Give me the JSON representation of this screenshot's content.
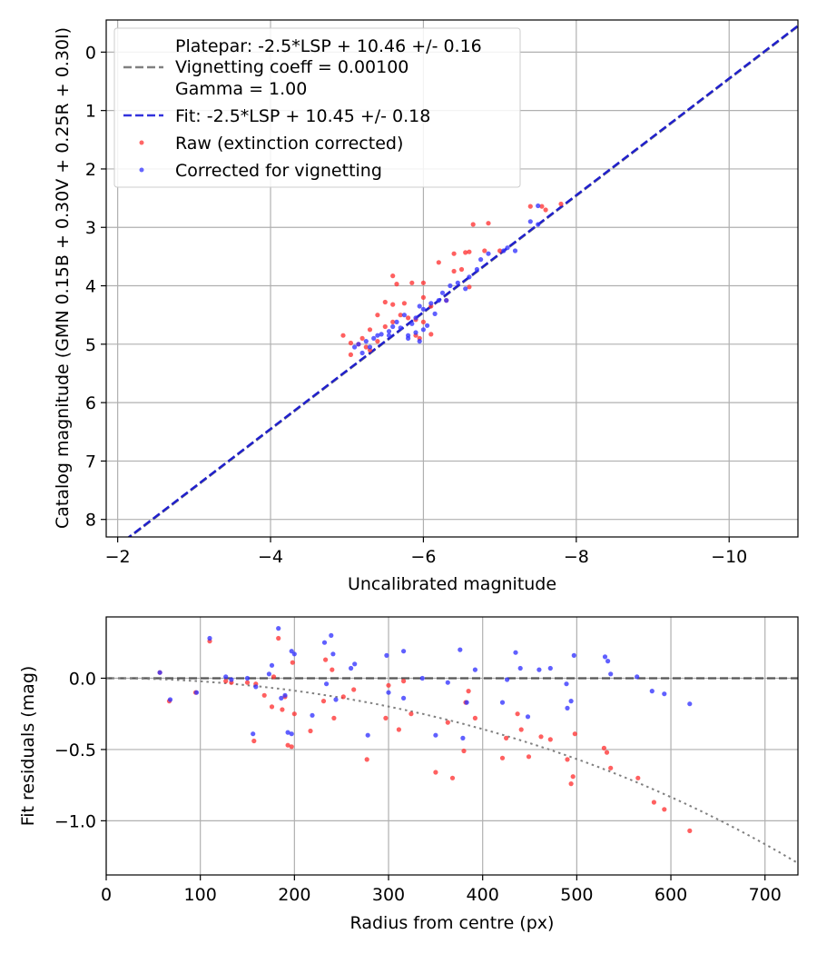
{
  "chart_data": [
    {
      "type": "scatter",
      "xlabel": "Uncalibrated magnitude",
      "ylabel": "Catalog magnitude (GMN 0.15B + 0.30V + 0.25R + 0.30I)",
      "xlim": [
        -1.85,
        -10.9
      ],
      "ylim": [
        8.3,
        -0.55
      ],
      "xticks": [
        -2,
        -4,
        -6,
        -8,
        -10
      ],
      "xtick_labels": [
        "−2",
        "−4",
        "−6",
        "−8",
        "−10"
      ],
      "yticks": [
        0,
        1,
        2,
        3,
        4,
        5,
        6,
        7,
        8
      ],
      "ytick_labels": [
        "0",
        "1",
        "2",
        "3",
        "4",
        "5",
        "6",
        "7",
        "8"
      ],
      "grid": true,
      "legend_position": "upper-left",
      "legend": [
        {
          "label": "Platepar: -2.5*LSP + 10.46 +/- 0.16",
          "style": "none"
        },
        {
          "label": "Vignetting coeff = 0.00100",
          "style": "dashed",
          "color": "#808080"
        },
        {
          "label": "Gamma = 1.00",
          "style": "none"
        },
        {
          "label": "Fit: -2.5*LSP + 10.45 +/- 0.18",
          "style": "dashed",
          "color": "#3333dd"
        },
        {
          "label": "Raw (extinction corrected)",
          "style": "dot",
          "color": "#ff3333"
        },
        {
          "label": "Corrected for vignetting",
          "style": "dot",
          "color": "#3333ff"
        }
      ],
      "lines": [
        {
          "name": "Platepar",
          "color": "#808080",
          "style": "dashed",
          "slope": 1,
          "intercept": 10.46
        },
        {
          "name": "Fit",
          "color": "#2020cc",
          "style": "dashed",
          "slope": 1,
          "intercept": 10.45
        }
      ],
      "series": [
        {
          "name": "Raw (extinction corrected)",
          "color": "#ff3333",
          "points": [
            [
              -7.4,
              2.64
            ],
            [
              -7.55,
              2.64
            ],
            [
              -7.6,
              2.7
            ],
            [
              -7.8,
              2.6
            ],
            [
              -6.85,
              2.93
            ],
            [
              -6.65,
              2.95
            ],
            [
              -7.0,
              3.4
            ],
            [
              -6.8,
              3.4
            ],
            [
              -6.55,
              3.43
            ],
            [
              -6.4,
              3.45
            ],
            [
              -6.6,
              3.42
            ],
            [
              -6.2,
              3.6
            ],
            [
              -6.4,
              3.75
            ],
            [
              -6.5,
              3.72
            ],
            [
              -5.6,
              3.83
            ],
            [
              -5.85,
              3.95
            ],
            [
              -6.0,
              3.95
            ],
            [
              -5.65,
              3.97
            ],
            [
              -6.6,
              4.02
            ],
            [
              -6.3,
              4.25
            ],
            [
              -5.5,
              4.28
            ],
            [
              -5.6,
              4.32
            ],
            [
              -5.75,
              4.3
            ],
            [
              -6.0,
              4.2
            ],
            [
              -6.1,
              4.35
            ],
            [
              -5.4,
              4.5
            ],
            [
              -5.7,
              4.5
            ],
            [
              -5.8,
              4.55
            ],
            [
              -5.9,
              4.58
            ],
            [
              -6.0,
              4.62
            ],
            [
              -5.5,
              4.7
            ],
            [
              -5.6,
              4.62
            ],
            [
              -5.3,
              4.75
            ],
            [
              -4.95,
              4.85
            ],
            [
              -5.2,
              4.9
            ],
            [
              -5.05,
              4.98
            ],
            [
              -5.15,
              5.0
            ],
            [
              -5.4,
              4.95
            ],
            [
              -5.25,
              5.05
            ],
            [
              -5.05,
              5.18
            ],
            [
              -5.3,
              5.1
            ],
            [
              -5.9,
              4.85
            ],
            [
              -5.95,
              4.9
            ],
            [
              -6.1,
              4.83
            ]
          ]
        },
        {
          "name": "Corrected for vignetting",
          "color": "#3333ff",
          "points": [
            [
              -7.5,
              2.63
            ],
            [
              -7.4,
              2.9
            ],
            [
              -7.5,
              2.95
            ],
            [
              -7.1,
              3.35
            ],
            [
              -7.05,
              3.4
            ],
            [
              -7.2,
              3.4
            ],
            [
              -6.85,
              3.45
            ],
            [
              -6.75,
              3.55
            ],
            [
              -6.7,
              3.72
            ],
            [
              -6.6,
              3.85
            ],
            [
              -6.45,
              3.95
            ],
            [
              -6.55,
              4.05
            ],
            [
              -6.35,
              4.0
            ],
            [
              -6.25,
              4.12
            ],
            [
              -6.2,
              4.25
            ],
            [
              -6.3,
              4.25
            ],
            [
              -6.1,
              4.3
            ],
            [
              -6.0,
              4.4
            ],
            [
              -6.15,
              4.48
            ],
            [
              -5.95,
              4.35
            ],
            [
              -5.9,
              4.55
            ],
            [
              -5.75,
              4.5
            ],
            [
              -5.85,
              4.65
            ],
            [
              -5.65,
              4.62
            ],
            [
              -5.6,
              4.7
            ],
            [
              -5.7,
              4.72
            ],
            [
              -5.55,
              4.78
            ],
            [
              -5.45,
              4.83
            ],
            [
              -5.4,
              4.85
            ],
            [
              -5.55,
              4.85
            ],
            [
              -5.35,
              4.9
            ],
            [
              -5.25,
              4.95
            ],
            [
              -5.15,
              5.0
            ],
            [
              -5.3,
              5.05
            ],
            [
              -5.1,
              5.05
            ],
            [
              -5.2,
              5.15
            ],
            [
              -5.8,
              4.85
            ],
            [
              -5.9,
              4.8
            ],
            [
              -6.0,
              4.75
            ],
            [
              -5.8,
              4.9
            ],
            [
              -5.95,
              4.95
            ],
            [
              -6.05,
              4.68
            ]
          ]
        }
      ]
    },
    {
      "type": "scatter",
      "xlabel": "Radius from centre (px)",
      "ylabel": "Fit residuals (mag)",
      "xlim": [
        0,
        735
      ],
      "ylim": [
        -1.38,
        0.43
      ],
      "xticks": [
        0,
        100,
        200,
        300,
        400,
        500,
        600,
        700
      ],
      "xtick_labels": [
        "0",
        "100",
        "200",
        "300",
        "400",
        "500",
        "600",
        "700"
      ],
      "yticks": [
        0.0,
        -0.5,
        -1.0
      ],
      "ytick_labels": [
        "0.0",
        "−0.5",
        "−1.0"
      ],
      "grid": true,
      "lines": [
        {
          "name": "zero",
          "color": "#555555",
          "style": "dashed",
          "y": 0.0
        },
        {
          "name": "vignetting model",
          "color": "#808080",
          "style": "dotted",
          "model": "vignetting",
          "coeff": 0.001
        }
      ],
      "series": [
        {
          "name": "Raw (extinction corrected)",
          "color": "#ff3333",
          "points": [
            [
              57,
              0.04
            ],
            [
              67,
              -0.16
            ],
            [
              95,
              -0.1
            ],
            [
              110,
              0.26
            ],
            [
              127,
              -0.02
            ],
            [
              133,
              -0.03
            ],
            [
              150,
              -0.03
            ],
            [
              157,
              -0.44
            ],
            [
              159,
              -0.04
            ],
            [
              168,
              -0.12
            ],
            [
              176,
              -0.2
            ],
            [
              178,
              0.01
            ],
            [
              183,
              0.28
            ],
            [
              187,
              -0.22
            ],
            [
              190,
              -0.13
            ],
            [
              193,
              -0.47
            ],
            [
              197,
              -0.48
            ],
            [
              198,
              0.11
            ],
            [
              200,
              -0.25
            ],
            [
              217,
              -0.37
            ],
            [
              231,
              -0.16
            ],
            [
              233,
              0.13
            ],
            [
              240,
              0.06
            ],
            [
              242,
              -0.28
            ],
            [
              252,
              -0.13
            ],
            [
              263,
              -0.08
            ],
            [
              277,
              -0.57
            ],
            [
              297,
              -0.28
            ],
            [
              300,
              -0.05
            ],
            [
              311,
              -0.36
            ],
            [
              316,
              -0.02
            ],
            [
              324,
              -0.25
            ],
            [
              350,
              -0.66
            ],
            [
              363,
              -0.31
            ],
            [
              368,
              -0.7
            ],
            [
              380,
              -0.51
            ],
            [
              382,
              -0.17
            ],
            [
              385,
              -0.09
            ],
            [
              392,
              -0.28
            ],
            [
              421,
              -0.56
            ],
            [
              425,
              -0.42
            ],
            [
              437,
              -0.25
            ],
            [
              441,
              -0.36
            ],
            [
              449,
              -0.55
            ],
            [
              462,
              -0.41
            ],
            [
              472,
              -0.43
            ],
            [
              490,
              -0.57
            ],
            [
              494,
              -0.74
            ],
            [
              496,
              -0.69
            ],
            [
              498,
              -0.39
            ],
            [
              529,
              -0.49
            ],
            [
              532,
              -0.52
            ],
            [
              536,
              -0.63
            ],
            [
              565,
              -0.7
            ],
            [
              582,
              -0.87
            ],
            [
              593,
              -0.92
            ],
            [
              620,
              -1.07
            ]
          ]
        },
        {
          "name": "Corrected for vignetting",
          "color": "#3333ff",
          "points": [
            [
              57,
              0.04
            ],
            [
              68,
              -0.15
            ],
            [
              96,
              -0.1
            ],
            [
              110,
              0.28
            ],
            [
              127,
              0.01
            ],
            [
              133,
              -0.01
            ],
            [
              150,
              0.0
            ],
            [
              156,
              -0.39
            ],
            [
              159,
              -0.06
            ],
            [
              173,
              0.03
            ],
            [
              176,
              0.09
            ],
            [
              183,
              0.35
            ],
            [
              186,
              -0.14
            ],
            [
              190,
              -0.12
            ],
            [
              193,
              -0.38
            ],
            [
              197,
              -0.39
            ],
            [
              197,
              0.19
            ],
            [
              200,
              0.17
            ],
            [
              219,
              -0.26
            ],
            [
              232,
              0.25
            ],
            [
              234,
              -0.04
            ],
            [
              239,
              0.3
            ],
            [
              241,
              0.17
            ],
            [
              244,
              -0.15
            ],
            [
              260,
              0.07
            ],
            [
              264,
              0.1
            ],
            [
              278,
              -0.4
            ],
            [
              298,
              0.16
            ],
            [
              300,
              -0.1
            ],
            [
              316,
              0.19
            ],
            [
              316,
              -0.14
            ],
            [
              336,
              0.0
            ],
            [
              350,
              -0.4
            ],
            [
              363,
              -0.03
            ],
            [
              376,
              0.2
            ],
            [
              379,
              -0.42
            ],
            [
              383,
              -0.17
            ],
            [
              392,
              0.06
            ],
            [
              421,
              -0.17
            ],
            [
              426,
              -0.01
            ],
            [
              435,
              0.18
            ],
            [
              440,
              0.07
            ],
            [
              448,
              -0.27
            ],
            [
              460,
              0.06
            ],
            [
              472,
              0.07
            ],
            [
              489,
              -0.04
            ],
            [
              490,
              -0.21
            ],
            [
              494,
              -0.16
            ],
            [
              497,
              0.16
            ],
            [
              530,
              0.15
            ],
            [
              533,
              0.12
            ],
            [
              536,
              0.03
            ],
            [
              564,
              0.01
            ],
            [
              580,
              -0.09
            ],
            [
              593,
              -0.11
            ],
            [
              620,
              -0.18
            ]
          ]
        }
      ]
    }
  ]
}
